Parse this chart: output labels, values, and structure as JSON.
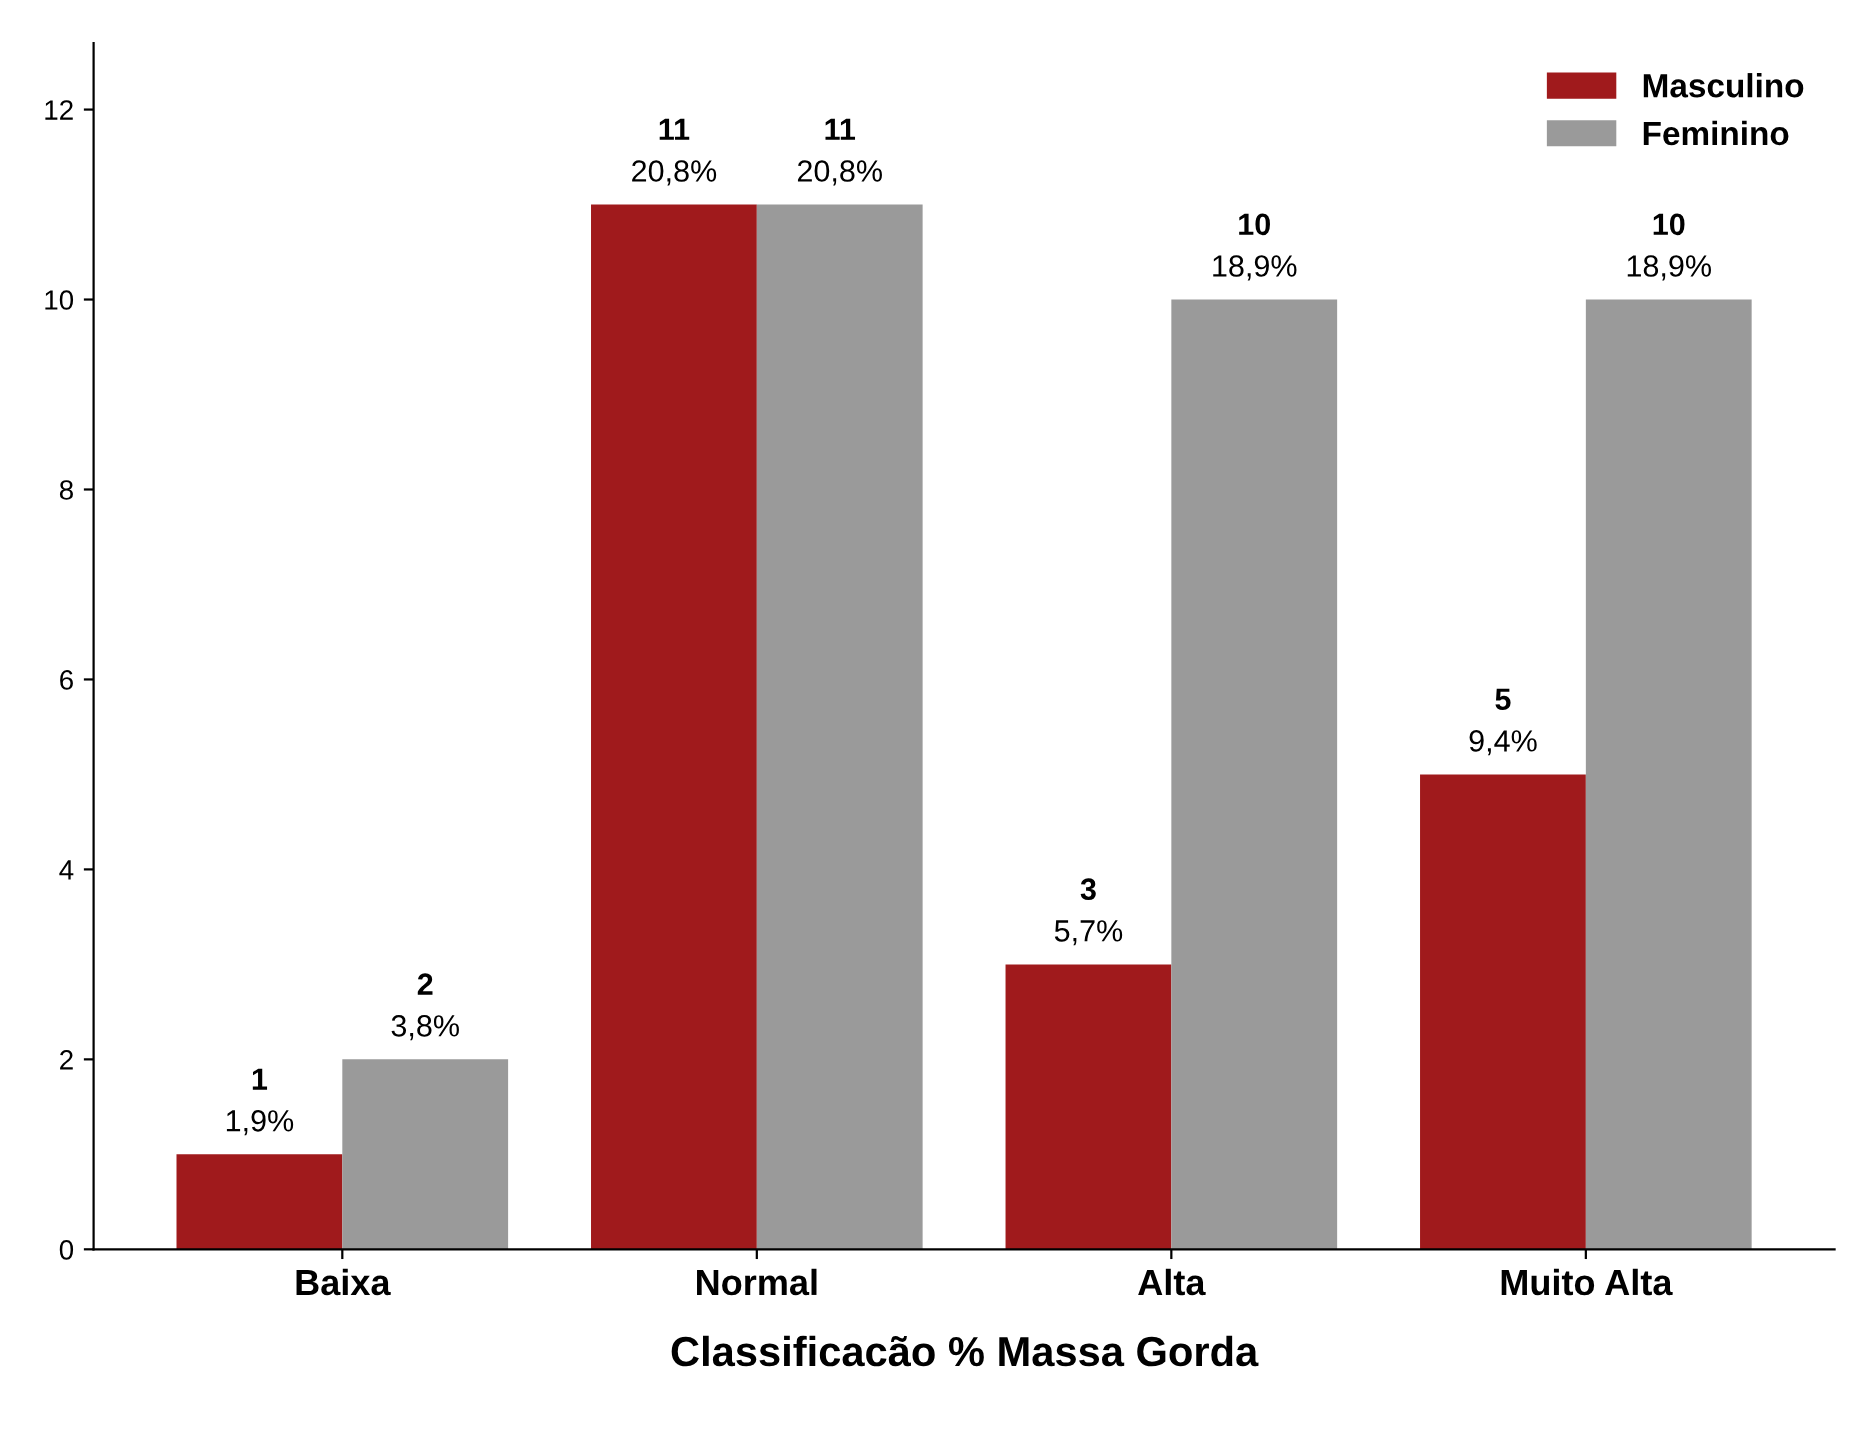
{
  "chart_data": {
    "type": "bar",
    "xlabel": "Classificacão % Massa Gorda",
    "categories": [
      "Baixa",
      "Normal",
      "Alta",
      "Muito Alta"
    ],
    "series": [
      {
        "name": "Masculino",
        "color": "#a01a1c",
        "values": [
          1,
          11,
          3,
          5
        ],
        "value_labels": [
          "1\n1,9%",
          "11\n20,8%",
          "3\n5,7%",
          "5\n9,4%"
        ]
      },
      {
        "name": "Feminino",
        "color": "#9a9a9a",
        "values": [
          2,
          11,
          10,
          10
        ],
        "value_labels": [
          "2\n3,8%",
          "11\n20,8%",
          "10\n18,9%",
          "10\n18,9%"
        ]
      }
    ],
    "ylim": [
      0,
      12.7
    ],
    "yticks": [
      0,
      2,
      4,
      6,
      8,
      10,
      12
    ],
    "grid": false,
    "legend": "top right"
  }
}
